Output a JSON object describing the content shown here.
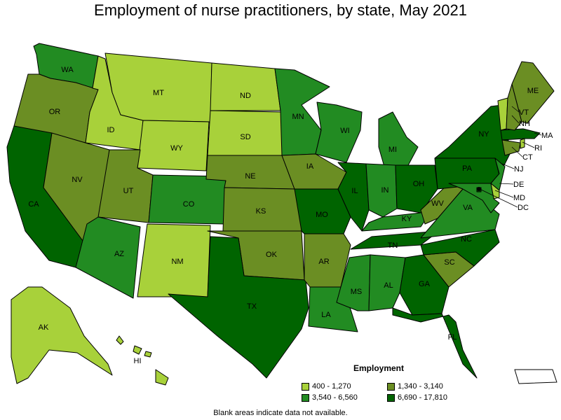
{
  "title": "Employment of nurse practitioners, by state, May 2021",
  "legend": {
    "title": "Employment",
    "items": [
      {
        "label": "400 - 1,270",
        "color": "#a8d13a"
      },
      {
        "label": "1,340 - 3,140",
        "color": "#6b8e23"
      },
      {
        "label": "3,540 - 6,560",
        "color": "#228b22"
      },
      {
        "label": "6,690 - 17,810",
        "color": "#006400"
      }
    ]
  },
  "note": "Blank areas indicate data not available.",
  "states": [
    {
      "abbr": "WA",
      "cls": 2
    },
    {
      "abbr": "OR",
      "cls": 1
    },
    {
      "abbr": "CA",
      "cls": 3
    },
    {
      "abbr": "ID",
      "cls": 0
    },
    {
      "abbr": "NV",
      "cls": 1
    },
    {
      "abbr": "MT",
      "cls": 0
    },
    {
      "abbr": "WY",
      "cls": 0
    },
    {
      "abbr": "UT",
      "cls": 1
    },
    {
      "abbr": "AZ",
      "cls": 2
    },
    {
      "abbr": "CO",
      "cls": 2
    },
    {
      "abbr": "NM",
      "cls": 0
    },
    {
      "abbr": "ND",
      "cls": 0
    },
    {
      "abbr": "SD",
      "cls": 0
    },
    {
      "abbr": "NE",
      "cls": 1
    },
    {
      "abbr": "KS",
      "cls": 1
    },
    {
      "abbr": "OK",
      "cls": 1
    },
    {
      "abbr": "TX",
      "cls": 3
    },
    {
      "abbr": "MN",
      "cls": 2
    },
    {
      "abbr": "IA",
      "cls": 1
    },
    {
      "abbr": "MO",
      "cls": 3
    },
    {
      "abbr": "AR",
      "cls": 1
    },
    {
      "abbr": "LA",
      "cls": 2
    },
    {
      "abbr": "WI",
      "cls": 2
    },
    {
      "abbr": "IL",
      "cls": 3
    },
    {
      "abbr": "MI",
      "cls": 2
    },
    {
      "abbr": "IN",
      "cls": 2
    },
    {
      "abbr": "OH",
      "cls": 3
    },
    {
      "abbr": "KY",
      "cls": 2
    },
    {
      "abbr": "TN",
      "cls": 3
    },
    {
      "abbr": "MS",
      "cls": 2
    },
    {
      "abbr": "AL",
      "cls": 2
    },
    {
      "abbr": "GA",
      "cls": 3
    },
    {
      "abbr": "FL",
      "cls": 3
    },
    {
      "abbr": "SC",
      "cls": 1
    },
    {
      "abbr": "NC",
      "cls": 3
    },
    {
      "abbr": "VA",
      "cls": 2
    },
    {
      "abbr": "WV",
      "cls": 1
    },
    {
      "abbr": "PA",
      "cls": 3
    },
    {
      "abbr": "NY",
      "cls": 3
    },
    {
      "abbr": "NJ",
      "cls": 2
    },
    {
      "abbr": "DE",
      "cls": 0
    },
    {
      "abbr": "MD",
      "cls": 2
    },
    {
      "abbr": "DC",
      "cls": 3
    },
    {
      "abbr": "CT",
      "cls": 1
    },
    {
      "abbr": "RI",
      "cls": 0
    },
    {
      "abbr": "MA",
      "cls": 3
    },
    {
      "abbr": "VT",
      "cls": 0
    },
    {
      "abbr": "NH",
      "cls": 1
    },
    {
      "abbr": "ME",
      "cls": 1
    },
    {
      "abbr": "AK",
      "cls": 0
    },
    {
      "abbr": "HI",
      "cls": 0
    },
    {
      "abbr": "PR",
      "cls": -1
    }
  ]
}
